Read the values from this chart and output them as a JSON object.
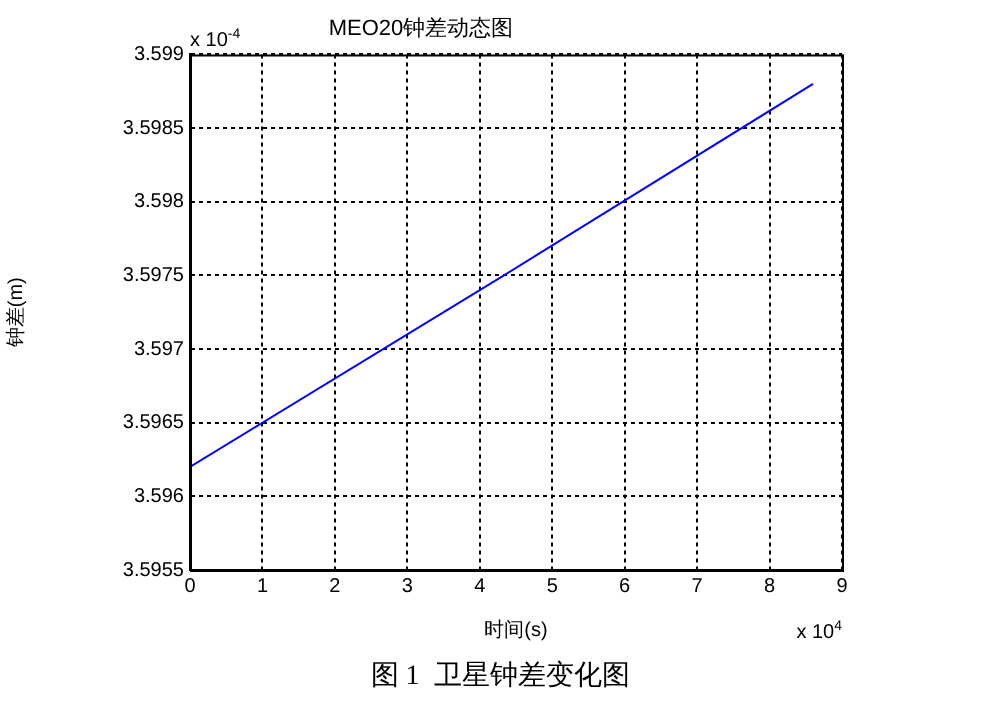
{
  "chart_data": {
    "type": "line",
    "title": "MEO20钟差动态图",
    "xlabel": "时间(s)",
    "ylabel": "钟差(m)",
    "x": [
      0,
      4.3,
      8.6
    ],
    "series": [
      {
        "color": "#0000ff",
        "values": [
          3.5962,
          3.59749,
          3.5988
        ]
      }
    ],
    "xlim": [
      0,
      9
    ],
    "xticks": [
      0,
      1,
      2,
      3,
      4,
      5,
      6,
      7,
      8,
      9
    ],
    "ylim": [
      3.5955,
      3.599
    ],
    "yticks": [
      3.5955,
      3.596,
      3.5965,
      3.597,
      3.5975,
      3.598,
      3.5985,
      3.599
    ],
    "grid": true,
    "legend": false,
    "marker": "none",
    "line_style": "solid",
    "annotations": [
      "x 10$^{-4}$",
      "x 10$^{4}$",
      "图 1  卫星钟差变化图"
    ]
  }
}
